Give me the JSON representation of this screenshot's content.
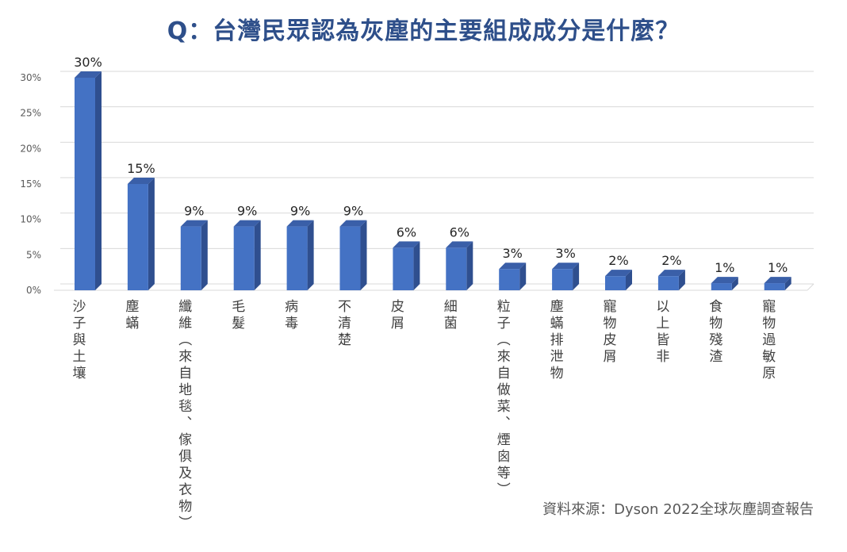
{
  "title": "Q：台灣民眾認為灰塵的主要組成成分是什麼？",
  "source": "資料來源：Dyson 2022全球灰塵調查報告",
  "colors": {
    "bar_front": "#4472c4",
    "bar_side": "#2f4f8f",
    "bar_top": "#3a5fa8",
    "title": "#2e4f8a",
    "grid": "#d9d9d9"
  },
  "chart_data": {
    "type": "bar",
    "title": "Q：台灣民眾認為灰塵的主要組成成分是什麼？",
    "xlabel": "",
    "ylabel": "",
    "ylim": [
      0,
      30
    ],
    "yticks": [
      "0%",
      "5%",
      "10%",
      "15%",
      "20%",
      "25%",
      "30%"
    ],
    "ytick_values": [
      0,
      5,
      10,
      15,
      20,
      25,
      30
    ],
    "grid": true,
    "categories": [
      "沙子與土壤",
      "塵蟎",
      "纖維（來自地毯、傢俱及衣物）",
      "毛髮",
      "病毒",
      "不清楚",
      "皮屑",
      "細菌",
      "粒子（來自做菜、煙囪等）",
      "塵蟎排泄物",
      "寵物皮屑",
      "以上皆非",
      "食物殘渣",
      "寵物過敏原"
    ],
    "values": [
      30,
      15,
      9,
      9,
      9,
      9,
      6,
      6,
      3,
      3,
      2,
      2,
      1,
      1
    ],
    "value_labels": [
      "30%",
      "15%",
      "9%",
      "9%",
      "9%",
      "9%",
      "6%",
      "6%",
      "3%",
      "3%",
      "2%",
      "2%",
      "1%",
      "1%"
    ]
  }
}
